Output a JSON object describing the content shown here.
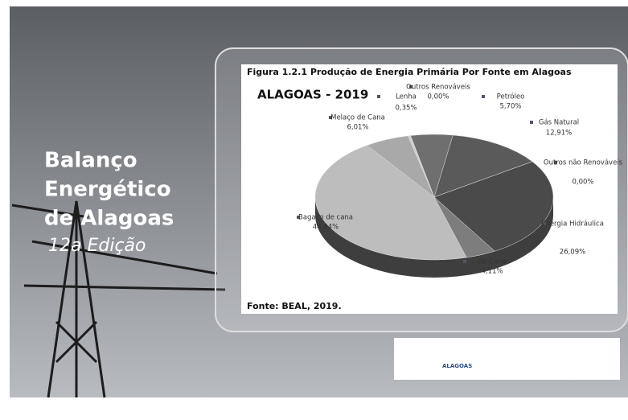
{
  "cover": {
    "title_lines": [
      "Balanço",
      "Energético",
      "de Alagoas"
    ],
    "edition": "12a Edição",
    "logo": "ALAGOAS"
  },
  "chart_data": {
    "type": "pie",
    "title": "Figura 1.2.1 Produção de Energia Primária Por Fonte  em Alagoas",
    "subtitle": "ALAGOAS - 2019",
    "source": "Fonte: BEAL, 2019.",
    "categories": [
      "Outros Renováveis",
      "Petróleo",
      "Gás Natural",
      "Outros não Renováveis",
      "Energia Hidráulica",
      "de Cana",
      "Bagaço de cana",
      "Melaço de Cana",
      "Lenha"
    ],
    "values": [
      0,
      5.7,
      12.91,
      0,
      26.09,
      4.11,
      44.84,
      6.01,
      0.35
    ],
    "value_labels": [
      "0,00%",
      "5,70%",
      "12,91%",
      "0,00%",
      "26,09%",
      "4,11%",
      "44,84%",
      "6,01%",
      "0,35%"
    ],
    "colors": [
      "#9a9a9a",
      "#6f6f6f",
      "#5a5a5a",
      "#888888",
      "#4a4a4a",
      "#7d7d7d",
      "#bdbdbd",
      "#a9a9a9",
      "#d0d0d0"
    ]
  }
}
